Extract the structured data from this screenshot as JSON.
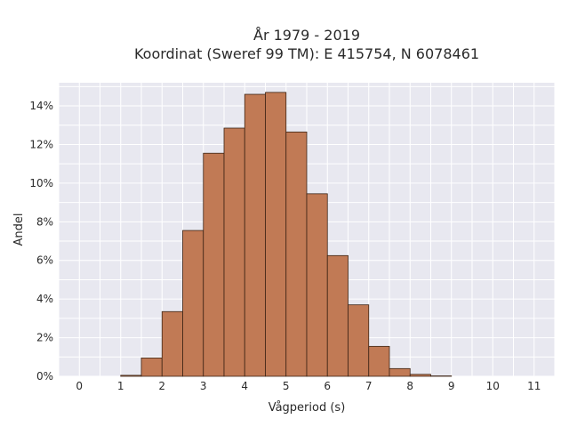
{
  "chart_data": {
    "type": "bar",
    "title_line1": "År 1979 - 2019",
    "title_line2": "Koordinat (Sweref 99 TM): E 415754, N 6078461",
    "xlabel": "Vågperiod (s)",
    "ylabel": "Andel",
    "xlim": [
      -0.5,
      11.5
    ],
    "ylim": [
      0,
      15.2
    ],
    "x_ticks": [
      0,
      1,
      2,
      3,
      4,
      5,
      6,
      7,
      8,
      9,
      10,
      11
    ],
    "y_ticks": [
      0,
      2,
      4,
      6,
      8,
      10,
      12,
      14
    ],
    "y_tick_labels": [
      "0%",
      "2%",
      "4%",
      "6%",
      "8%",
      "10%",
      "12%",
      "14%"
    ],
    "bin_width": 0.5,
    "bins": [
      {
        "start": 1.0,
        "value": 0.05
      },
      {
        "start": 1.5,
        "value": 0.95
      },
      {
        "start": 2.0,
        "value": 3.35
      },
      {
        "start": 2.5,
        "value": 7.55
      },
      {
        "start": 3.0,
        "value": 11.55
      },
      {
        "start": 3.5,
        "value": 12.85
      },
      {
        "start": 4.0,
        "value": 14.6
      },
      {
        "start": 4.5,
        "value": 14.7
      },
      {
        "start": 5.0,
        "value": 12.65
      },
      {
        "start": 5.5,
        "value": 9.45
      },
      {
        "start": 6.0,
        "value": 6.25
      },
      {
        "start": 6.5,
        "value": 3.7
      },
      {
        "start": 7.0,
        "value": 1.55
      },
      {
        "start": 7.5,
        "value": 0.4
      },
      {
        "start": 8.0,
        "value": 0.1
      },
      {
        "start": 8.5,
        "value": 0.02
      }
    ],
    "grid": true,
    "colors": {
      "bar": "#c17a55",
      "bar_edge": "#3d2414",
      "plot_bg": "#e8e8f0",
      "grid": "#ffffff"
    }
  }
}
